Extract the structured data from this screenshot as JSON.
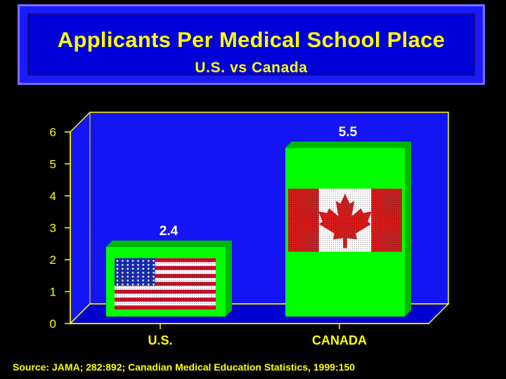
{
  "title": "Applicants Per Medical School Place",
  "subtitle": "U.S. vs Canada",
  "source": "Source: JAMA; 282:892; Canadian Medical Education Statistics, 1999:150",
  "colors": {
    "background": "#000000",
    "plot_back": "#1414f5",
    "plot_floor": "#0000d0",
    "plot_edge": "#ffff00",
    "bar": "#00ff00",
    "bar_side": "#00b800",
    "text": "#ffff00",
    "data_label": "#ffffff"
  },
  "chart_data": {
    "type": "bar",
    "title": "Applicants Per Medical School Place",
    "subtitle": "U.S. vs Canada",
    "categories": [
      "U.S.",
      "CANADA"
    ],
    "values": [
      2.4,
      5.5
    ],
    "data_labels": [
      "2.4",
      "5.5"
    ],
    "bar_images": [
      "us-flag",
      "canada-flag"
    ],
    "ylim": [
      0,
      6
    ],
    "yticks": [
      "0",
      "1",
      "2",
      "3",
      "4",
      "5",
      "6"
    ],
    "xlabel": "",
    "ylabel": "",
    "grid": false,
    "legend": "none"
  }
}
